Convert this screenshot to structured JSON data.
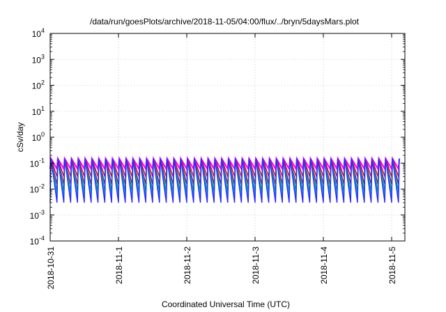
{
  "chart_data": {
    "type": "line",
    "title": "/data/run/goesPlots/archive/2018-11-05/04:00/flux/../bryn/5daysMars.plot",
    "xlabel": "Coordinated Universal Time (UTC)",
    "ylabel": "cSv/day",
    "y_scale": "log",
    "ylim": [
      0.0001,
      10000
    ],
    "xlim": [
      "2018-10-31",
      "2018-11-05 04:00"
    ],
    "grid": true,
    "y_ticks": [
      {
        "mant": "10",
        "exp": "-4",
        "value": 0.0001
      },
      {
        "mant": "10",
        "exp": "-3",
        "value": 0.001
      },
      {
        "mant": "10",
        "exp": "-2",
        "value": 0.01
      },
      {
        "mant": "10",
        "exp": "-1",
        "value": 0.1
      },
      {
        "mant": "10",
        "exp": "0",
        "value": 1
      },
      {
        "mant": "10",
        "exp": "1",
        "value": 10
      },
      {
        "mant": "10",
        "exp": "2",
        "value": 100
      },
      {
        "mant": "10",
        "exp": "3",
        "value": 1000
      },
      {
        "mant": "10",
        "exp": "4",
        "value": 10000
      }
    ],
    "x_ticks": [
      "2018-10-31",
      "2018-11-1",
      "2018-11-2",
      "2018-11-3",
      "2018-11-4",
      "2018-11-5"
    ],
    "sawtooth": {
      "cycles_per_day": 10,
      "peak_value": 0.15,
      "dip_values_by_series": [
        0.06,
        0.03,
        0.015,
        0.008,
        0.005,
        0.003
      ]
    },
    "series": [
      {
        "color": "#ff00ff"
      },
      {
        "color": "#cc0044"
      },
      {
        "color": "#8a2060"
      },
      {
        "color": "#009060"
      },
      {
        "color": "#00b0ee"
      },
      {
        "color": "#2a2aff"
      }
    ]
  }
}
